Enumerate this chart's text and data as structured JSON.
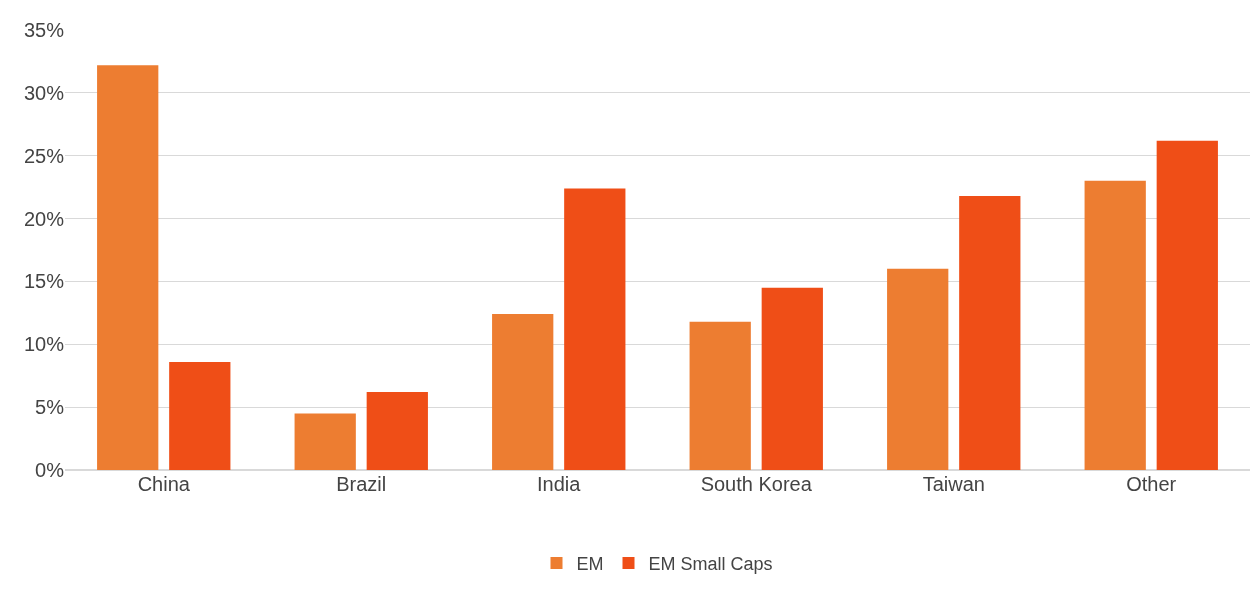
{
  "chart_data": {
    "type": "bar",
    "categories": [
      "China",
      "Brazil",
      "India",
      "South Korea",
      "Taiwan",
      "Other"
    ],
    "series": [
      {
        "name": "EM",
        "color": "#ed7d31",
        "values": [
          32.2,
          4.5,
          12.4,
          11.8,
          16.0,
          23.0
        ]
      },
      {
        "name": "EM Small Caps",
        "color": "#ef4e17",
        "values": [
          8.6,
          6.2,
          22.4,
          14.5,
          21.8,
          26.2
        ]
      }
    ],
    "ylim": [
      0,
      35
    ],
    "yticks": [
      {
        "value": 0,
        "label": "0%"
      },
      {
        "value": 5,
        "label": "5%"
      },
      {
        "value": 10,
        "label": "10%"
      },
      {
        "value": 15,
        "label": "15%"
      },
      {
        "value": 20,
        "label": "20%"
      },
      {
        "value": 25,
        "label": "25%"
      },
      {
        "value": 30,
        "label": "30%"
      },
      {
        "value": 35,
        "label": "35%"
      }
    ],
    "grid": "y",
    "legend": "bottom"
  }
}
